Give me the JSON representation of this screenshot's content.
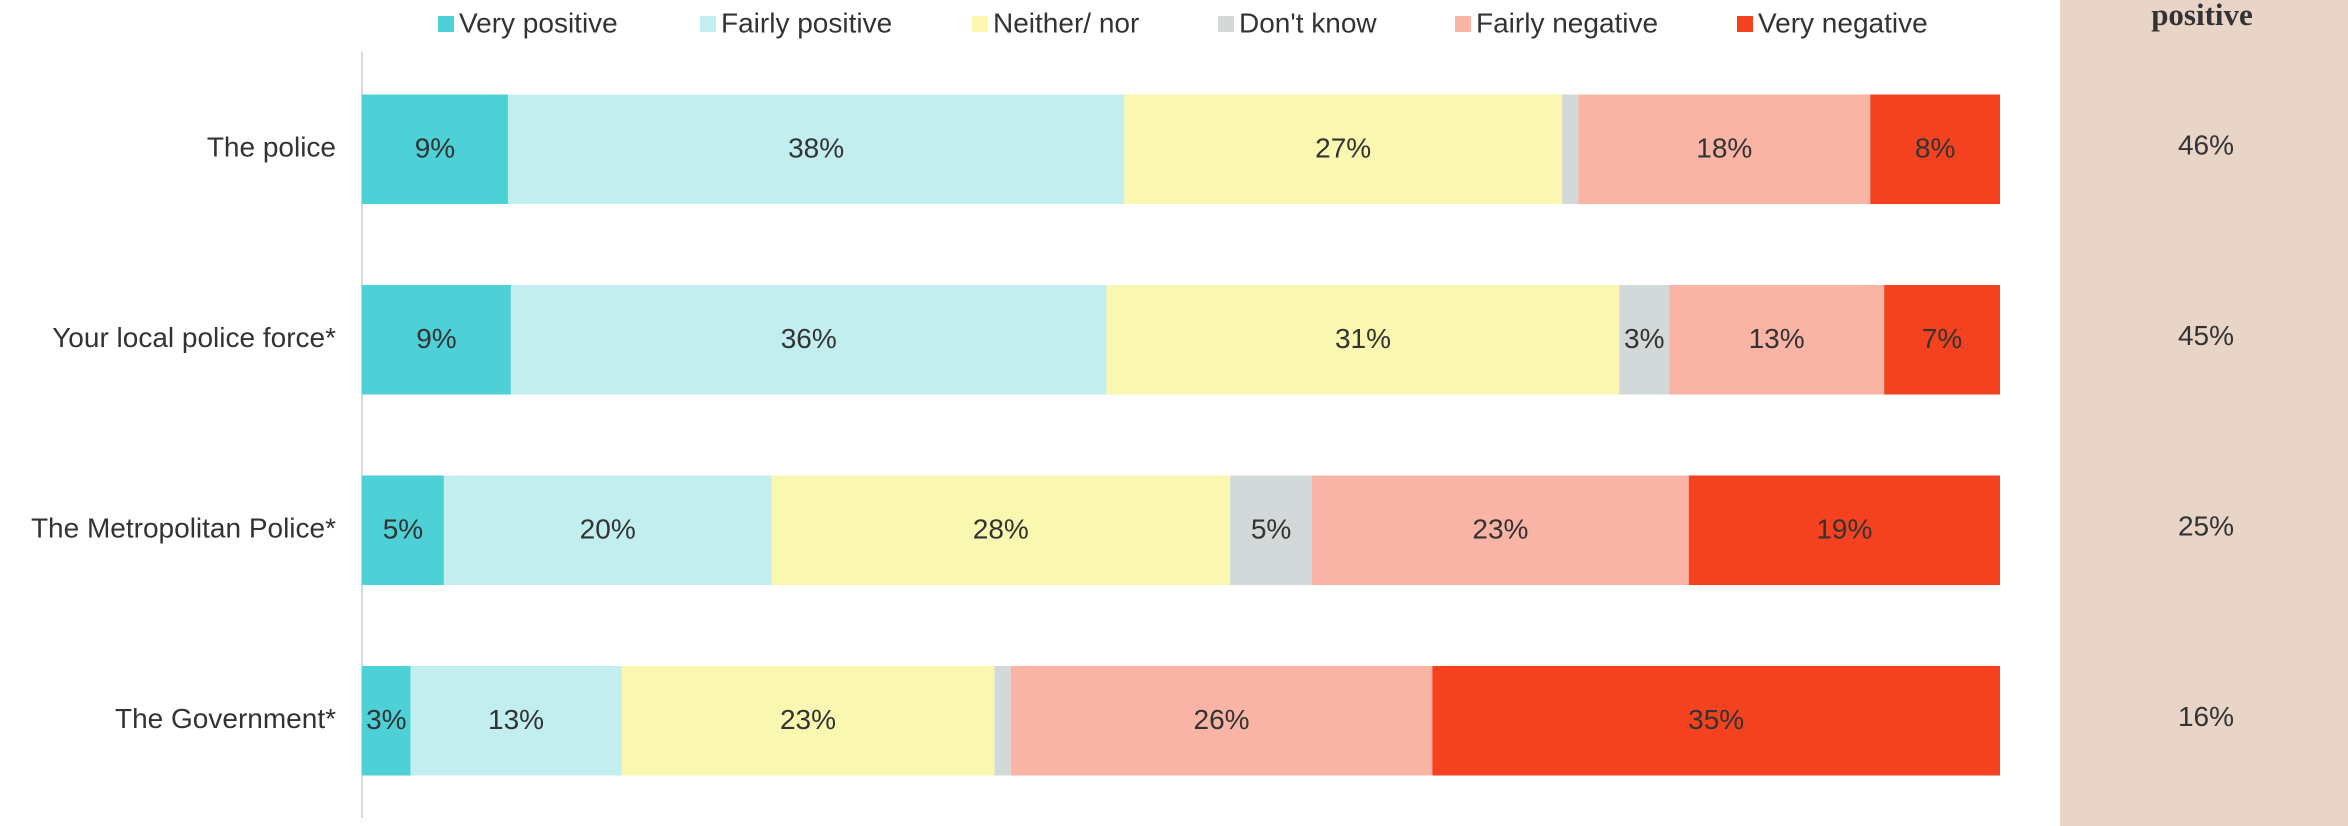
{
  "chart_data": {
    "type": "stacked_barh",
    "categories": [
      "The police",
      "Your local police force*",
      "The Metropolitan Police*",
      "The Government*"
    ],
    "series": [
      {
        "name": "Very positive",
        "color": "#4dd0d6",
        "values": [
          9,
          9,
          5,
          3
        ],
        "value_labels": [
          "9%",
          "9%",
          "5%",
          "3%"
        ]
      },
      {
        "name": "Fairly positive",
        "color": "#c3eef0",
        "values": [
          38,
          36,
          20,
          13
        ],
        "value_labels": [
          "38%",
          "36%",
          "20%",
          "13%"
        ]
      },
      {
        "name": "Neither/ nor",
        "color": "#f9f7b0",
        "values": [
          27,
          31,
          28,
          23
        ],
        "value_labels": [
          "27%",
          "31%",
          "28%",
          "23%"
        ]
      },
      {
        "name": "Don't know",
        "color": "#d3d9d9",
        "values": [
          1,
          3,
          5,
          1
        ],
        "value_labels": [
          null,
          "3%",
          "5%",
          null
        ]
      },
      {
        "name": "Fairly negative",
        "color": "#fab4a6",
        "values": [
          18,
          13,
          23,
          26
        ],
        "value_labels": [
          "18%",
          "13%",
          "23%",
          "26%"
        ]
      },
      {
        "name": "Very negative",
        "color": "#f44220",
        "values": [
          8,
          7,
          19,
          35
        ],
        "value_labels": [
          "8%",
          "7%",
          "19%",
          "35%"
        ]
      }
    ],
    "side_column": {
      "title": "positive",
      "color": "#e8d5c8",
      "values": [
        46,
        45,
        25,
        16
      ],
      "value_labels": [
        "46%",
        "45%",
        "25%",
        "16%"
      ]
    }
  }
}
